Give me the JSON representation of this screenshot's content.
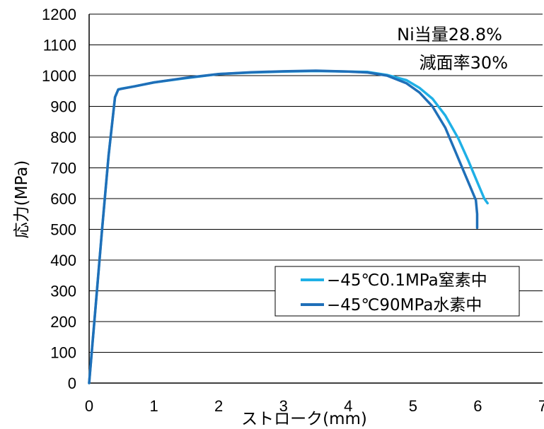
{
  "chart_data": {
    "type": "line",
    "xlabel": "ストローク(mm)",
    "ylabel": "応力(MPa)",
    "xlim": [
      0,
      7
    ],
    "ylim": [
      0,
      1200
    ],
    "x_ticks": [
      "0",
      "1",
      "2",
      "3",
      "4",
      "5",
      "6",
      "7"
    ],
    "y_ticks": [
      "0",
      "100",
      "200",
      "300",
      "400",
      "500",
      "600",
      "700",
      "800",
      "900",
      "1000",
      "1100",
      "1200"
    ],
    "grid": "horizontal",
    "legend_position": "lower-right",
    "annotations": [
      "Ni当量28.8%",
      "減面率30%"
    ],
    "series": [
      {
        "name": "−45℃0.1MPa窒素中",
        "color": "#1fb0e6",
        "x": [
          0,
          0.1,
          0.2,
          0.3,
          0.4,
          0.45,
          0.5,
          0.7,
          1.0,
          1.5,
          2.0,
          2.5,
          3.0,
          3.5,
          4.0,
          4.3,
          4.6,
          4.9,
          5.1,
          5.3,
          5.5,
          5.7,
          5.85,
          6.0,
          6.1,
          6.15
        ],
        "y": [
          0,
          250,
          500,
          740,
          930,
          955,
          958,
          965,
          978,
          992,
          1005,
          1010,
          1013,
          1015,
          1013,
          1012,
          1002,
          985,
          960,
          925,
          870,
          795,
          725,
          650,
          600,
          585
        ]
      },
      {
        "name": "−45℃90MPa水素中",
        "color": "#1f6fb8",
        "x": [
          0,
          0.1,
          0.2,
          0.3,
          0.4,
          0.45,
          0.5,
          0.7,
          1.0,
          1.5,
          2.0,
          2.5,
          3.0,
          3.5,
          4.0,
          4.3,
          4.6,
          4.9,
          5.1,
          5.3,
          5.5,
          5.65,
          5.8,
          5.9,
          5.97,
          5.99,
          5.99
        ],
        "y": [
          0,
          250,
          500,
          740,
          930,
          955,
          957,
          965,
          978,
          993,
          1005,
          1011,
          1014,
          1016,
          1013,
          1010,
          1000,
          975,
          945,
          900,
          830,
          755,
          680,
          630,
          595,
          550,
          505
        ]
      }
    ]
  }
}
